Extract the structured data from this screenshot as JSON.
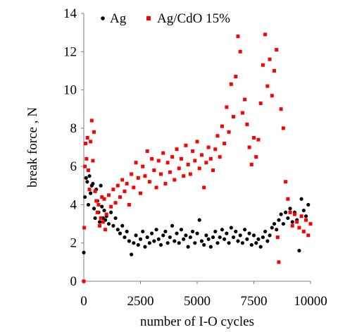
{
  "chart_data": {
    "type": "scatter",
    "xlabel": "number of I-O cycles",
    "ylabel": "break force , N",
    "xlim": [
      0,
      10000
    ],
    "ylim": [
      0,
      14
    ],
    "x_ticks": [
      0,
      2500,
      5000,
      7500,
      10000
    ],
    "y_ticks": [
      0,
      2,
      4,
      6,
      8,
      10,
      12,
      14
    ],
    "grid": false,
    "legend_position": "top",
    "series": [
      {
        "name": "Ag",
        "color": "#000000",
        "marker": "circle",
        "points": [
          [
            0,
            1.5
          ],
          [
            50,
            4.4
          ],
          [
            100,
            5.4
          ],
          [
            150,
            5.2
          ],
          [
            200,
            4.0
          ],
          [
            250,
            5.5
          ],
          [
            300,
            4.6
          ],
          [
            350,
            5.0
          ],
          [
            400,
            5.1
          ],
          [
            450,
            3.8
          ],
          [
            500,
            3.3
          ],
          [
            550,
            4.8
          ],
          [
            600,
            4.2
          ],
          [
            650,
            3.6
          ],
          [
            700,
            3.1
          ],
          [
            750,
            5.0
          ],
          [
            800,
            3.9
          ],
          [
            850,
            3.3
          ],
          [
            900,
            3.7
          ],
          [
            950,
            3.2
          ],
          [
            1000,
            3.4
          ],
          [
            1100,
            3.0
          ],
          [
            1200,
            3.6
          ],
          [
            1300,
            2.9
          ],
          [
            1400,
            3.3
          ],
          [
            1500,
            2.7
          ],
          [
            1600,
            2.5
          ],
          [
            1700,
            2.9
          ],
          [
            1800,
            2.3
          ],
          [
            1900,
            2.6
          ],
          [
            2000,
            2.1
          ],
          [
            2100,
            1.4
          ],
          [
            2200,
            2.0
          ],
          [
            2300,
            2.4
          ],
          [
            2400,
            1.9
          ],
          [
            2500,
            2.2
          ],
          [
            2600,
            2.6
          ],
          [
            2700,
            1.8
          ],
          [
            2800,
            2.3
          ],
          [
            2900,
            2.0
          ],
          [
            3000,
            2.5
          ],
          [
            3100,
            2.1
          ],
          [
            3200,
            2.7
          ],
          [
            3300,
            2.2
          ],
          [
            3400,
            1.9
          ],
          [
            3500,
            2.4
          ],
          [
            3600,
            2.6
          ],
          [
            3700,
            2.0
          ],
          [
            3800,
            2.3
          ],
          [
            3900,
            2.9
          ],
          [
            4000,
            2.1
          ],
          [
            4100,
            2.5
          ],
          [
            4200,
            2.0
          ],
          [
            4300,
            2.7
          ],
          [
            4400,
            2.2
          ],
          [
            4500,
            2.4
          ],
          [
            4600,
            1.8
          ],
          [
            4700,
            2.3
          ],
          [
            4800,
            2.6
          ],
          [
            4900,
            2.0
          ],
          [
            5000,
            2.5
          ],
          [
            5100,
            3.2
          ],
          [
            5200,
            2.1
          ],
          [
            5300,
            1.9
          ],
          [
            5400,
            2.4
          ],
          [
            5500,
            2.2
          ],
          [
            5600,
            1.8
          ],
          [
            5700,
            2.3
          ],
          [
            5800,
            2.6
          ],
          [
            5900,
            2.0
          ],
          [
            6000,
            2.3
          ],
          [
            6100,
            2.7
          ],
          [
            6200,
            2.2
          ],
          [
            6300,
            2.5
          ],
          [
            6400,
            2.0
          ],
          [
            6500,
            2.8
          ],
          [
            6600,
            2.3
          ],
          [
            6700,
            2.6
          ],
          [
            6800,
            2.1
          ],
          [
            6900,
            2.4
          ],
          [
            7000,
            2.0
          ],
          [
            7100,
            2.7
          ],
          [
            7200,
            2.2
          ],
          [
            7300,
            2.5
          ],
          [
            7400,
            1.9
          ],
          [
            7500,
            2.4
          ],
          [
            7600,
            2.0
          ],
          [
            7700,
            2.2
          ],
          [
            7800,
            1.8
          ],
          [
            7900,
            2.3
          ],
          [
            8000,
            2.6
          ],
          [
            8100,
            2.1
          ],
          [
            8200,
            2.4
          ],
          [
            8300,
            2.8
          ],
          [
            8400,
            3.0
          ],
          [
            8500,
            2.7
          ],
          [
            8600,
            3.2
          ],
          [
            8700,
            3.5
          ],
          [
            8800,
            3.0
          ],
          [
            8900,
            3.6
          ],
          [
            9000,
            3.3
          ],
          [
            9100,
            3.8
          ],
          [
            9200,
            3.1
          ],
          [
            9300,
            3.6
          ],
          [
            9400,
            3.2
          ],
          [
            9500,
            1.6
          ],
          [
            9600,
            4.3
          ],
          [
            9700,
            3.7
          ],
          [
            9800,
            3.4
          ],
          [
            9900,
            4.0
          ]
        ]
      },
      {
        "name": "Ag/CdO 15%",
        "color": "#ff0000",
        "marker": "square",
        "points": [
          [
            0,
            0.0
          ],
          [
            20,
            2.8
          ],
          [
            50,
            6.0
          ],
          [
            80,
            7.2
          ],
          [
            120,
            6.4
          ],
          [
            160,
            7.5
          ],
          [
            200,
            5.8
          ],
          [
            250,
            4.8
          ],
          [
            300,
            7.3
          ],
          [
            350,
            8.4
          ],
          [
            400,
            6.3
          ],
          [
            450,
            7.8
          ],
          [
            500,
            4.7
          ],
          [
            550,
            4.2
          ],
          [
            600,
            3.6
          ],
          [
            650,
            4.0
          ],
          [
            700,
            2.9
          ],
          [
            750,
            3.3
          ],
          [
            800,
            4.4
          ],
          [
            850,
            3.1
          ],
          [
            900,
            4.3
          ],
          [
            950,
            2.7
          ],
          [
            1000,
            3.5
          ],
          [
            1100,
            4.5
          ],
          [
            1200,
            3.9
          ],
          [
            1300,
            4.8
          ],
          [
            1400,
            4.1
          ],
          [
            1500,
            5.0
          ],
          [
            1600,
            4.4
          ],
          [
            1700,
            5.3
          ],
          [
            1800,
            4.7
          ],
          [
            1900,
            5.1
          ],
          [
            2000,
            4.0
          ],
          [
            2100,
            5.6
          ],
          [
            2200,
            4.9
          ],
          [
            2300,
            6.2
          ],
          [
            2400,
            5.4
          ],
          [
            2500,
            4.6
          ],
          [
            2600,
            6.0
          ],
          [
            2700,
            5.5
          ],
          [
            2800,
            6.8
          ],
          [
            2900,
            5.2
          ],
          [
            3000,
            6.4
          ],
          [
            3100,
            5.8
          ],
          [
            3200,
            4.9
          ],
          [
            3300,
            6.3
          ],
          [
            3400,
            5.6
          ],
          [
            3500,
            6.7
          ],
          [
            3600,
            5.1
          ],
          [
            3700,
            6.2
          ],
          [
            3800,
            5.7
          ],
          [
            3900,
            6.5
          ],
          [
            4000,
            5.3
          ],
          [
            4100,
            6.9
          ],
          [
            4200,
            5.9
          ],
          [
            4300,
            6.4
          ],
          [
            4400,
            5.5
          ],
          [
            4500,
            7.1
          ],
          [
            4600,
            6.1
          ],
          [
            4700,
            5.6
          ],
          [
            4800,
            6.8
          ],
          [
            4900,
            6.3
          ],
          [
            5000,
            7.3
          ],
          [
            5100,
            5.9
          ],
          [
            5200,
            6.6
          ],
          [
            5300,
            4.9
          ],
          [
            5400,
            6.2
          ],
          [
            5500,
            7.0
          ],
          [
            5600,
            6.4
          ],
          [
            5700,
            5.8
          ],
          [
            5800,
            6.9
          ],
          [
            5900,
            7.6
          ],
          [
            6000,
            6.5
          ],
          [
            6100,
            8.1
          ],
          [
            6200,
            7.2
          ],
          [
            6300,
            9.1
          ],
          [
            6400,
            7.8
          ],
          [
            6500,
            10.3
          ],
          [
            6600,
            8.6
          ],
          [
            6700,
            10.7
          ],
          [
            6800,
            12.8
          ],
          [
            6900,
            12.0
          ],
          [
            7000,
            8.8
          ],
          [
            7100,
            9.5
          ],
          [
            7200,
            8.2
          ],
          [
            7300,
            7.0
          ],
          [
            7400,
            6.1
          ],
          [
            7500,
            7.5
          ],
          [
            7600,
            6.5
          ],
          [
            7700,
            7.4
          ],
          [
            7800,
            9.3
          ],
          [
            7900,
            11.3
          ],
          [
            8000,
            12.9
          ],
          [
            8100,
            10.2
          ],
          [
            8200,
            11.6
          ],
          [
            8300,
            9.7
          ],
          [
            8400,
            11.0
          ],
          [
            8500,
            12.1
          ],
          [
            8550,
            2.3
          ],
          [
            8600,
            1.0
          ],
          [
            8700,
            9.0
          ],
          [
            8800,
            8.0
          ],
          [
            8900,
            5.2
          ],
          [
            9000,
            4.3
          ],
          [
            9100,
            3.6
          ],
          [
            9200,
            2.9
          ],
          [
            9300,
            3.5
          ],
          [
            9400,
            3.1
          ],
          [
            9500,
            2.8
          ],
          [
            9600,
            3.4
          ],
          [
            9700,
            2.6
          ],
          [
            9800,
            3.2
          ],
          [
            9900,
            2.4
          ],
          [
            10000,
            3.0
          ]
        ]
      }
    ]
  }
}
